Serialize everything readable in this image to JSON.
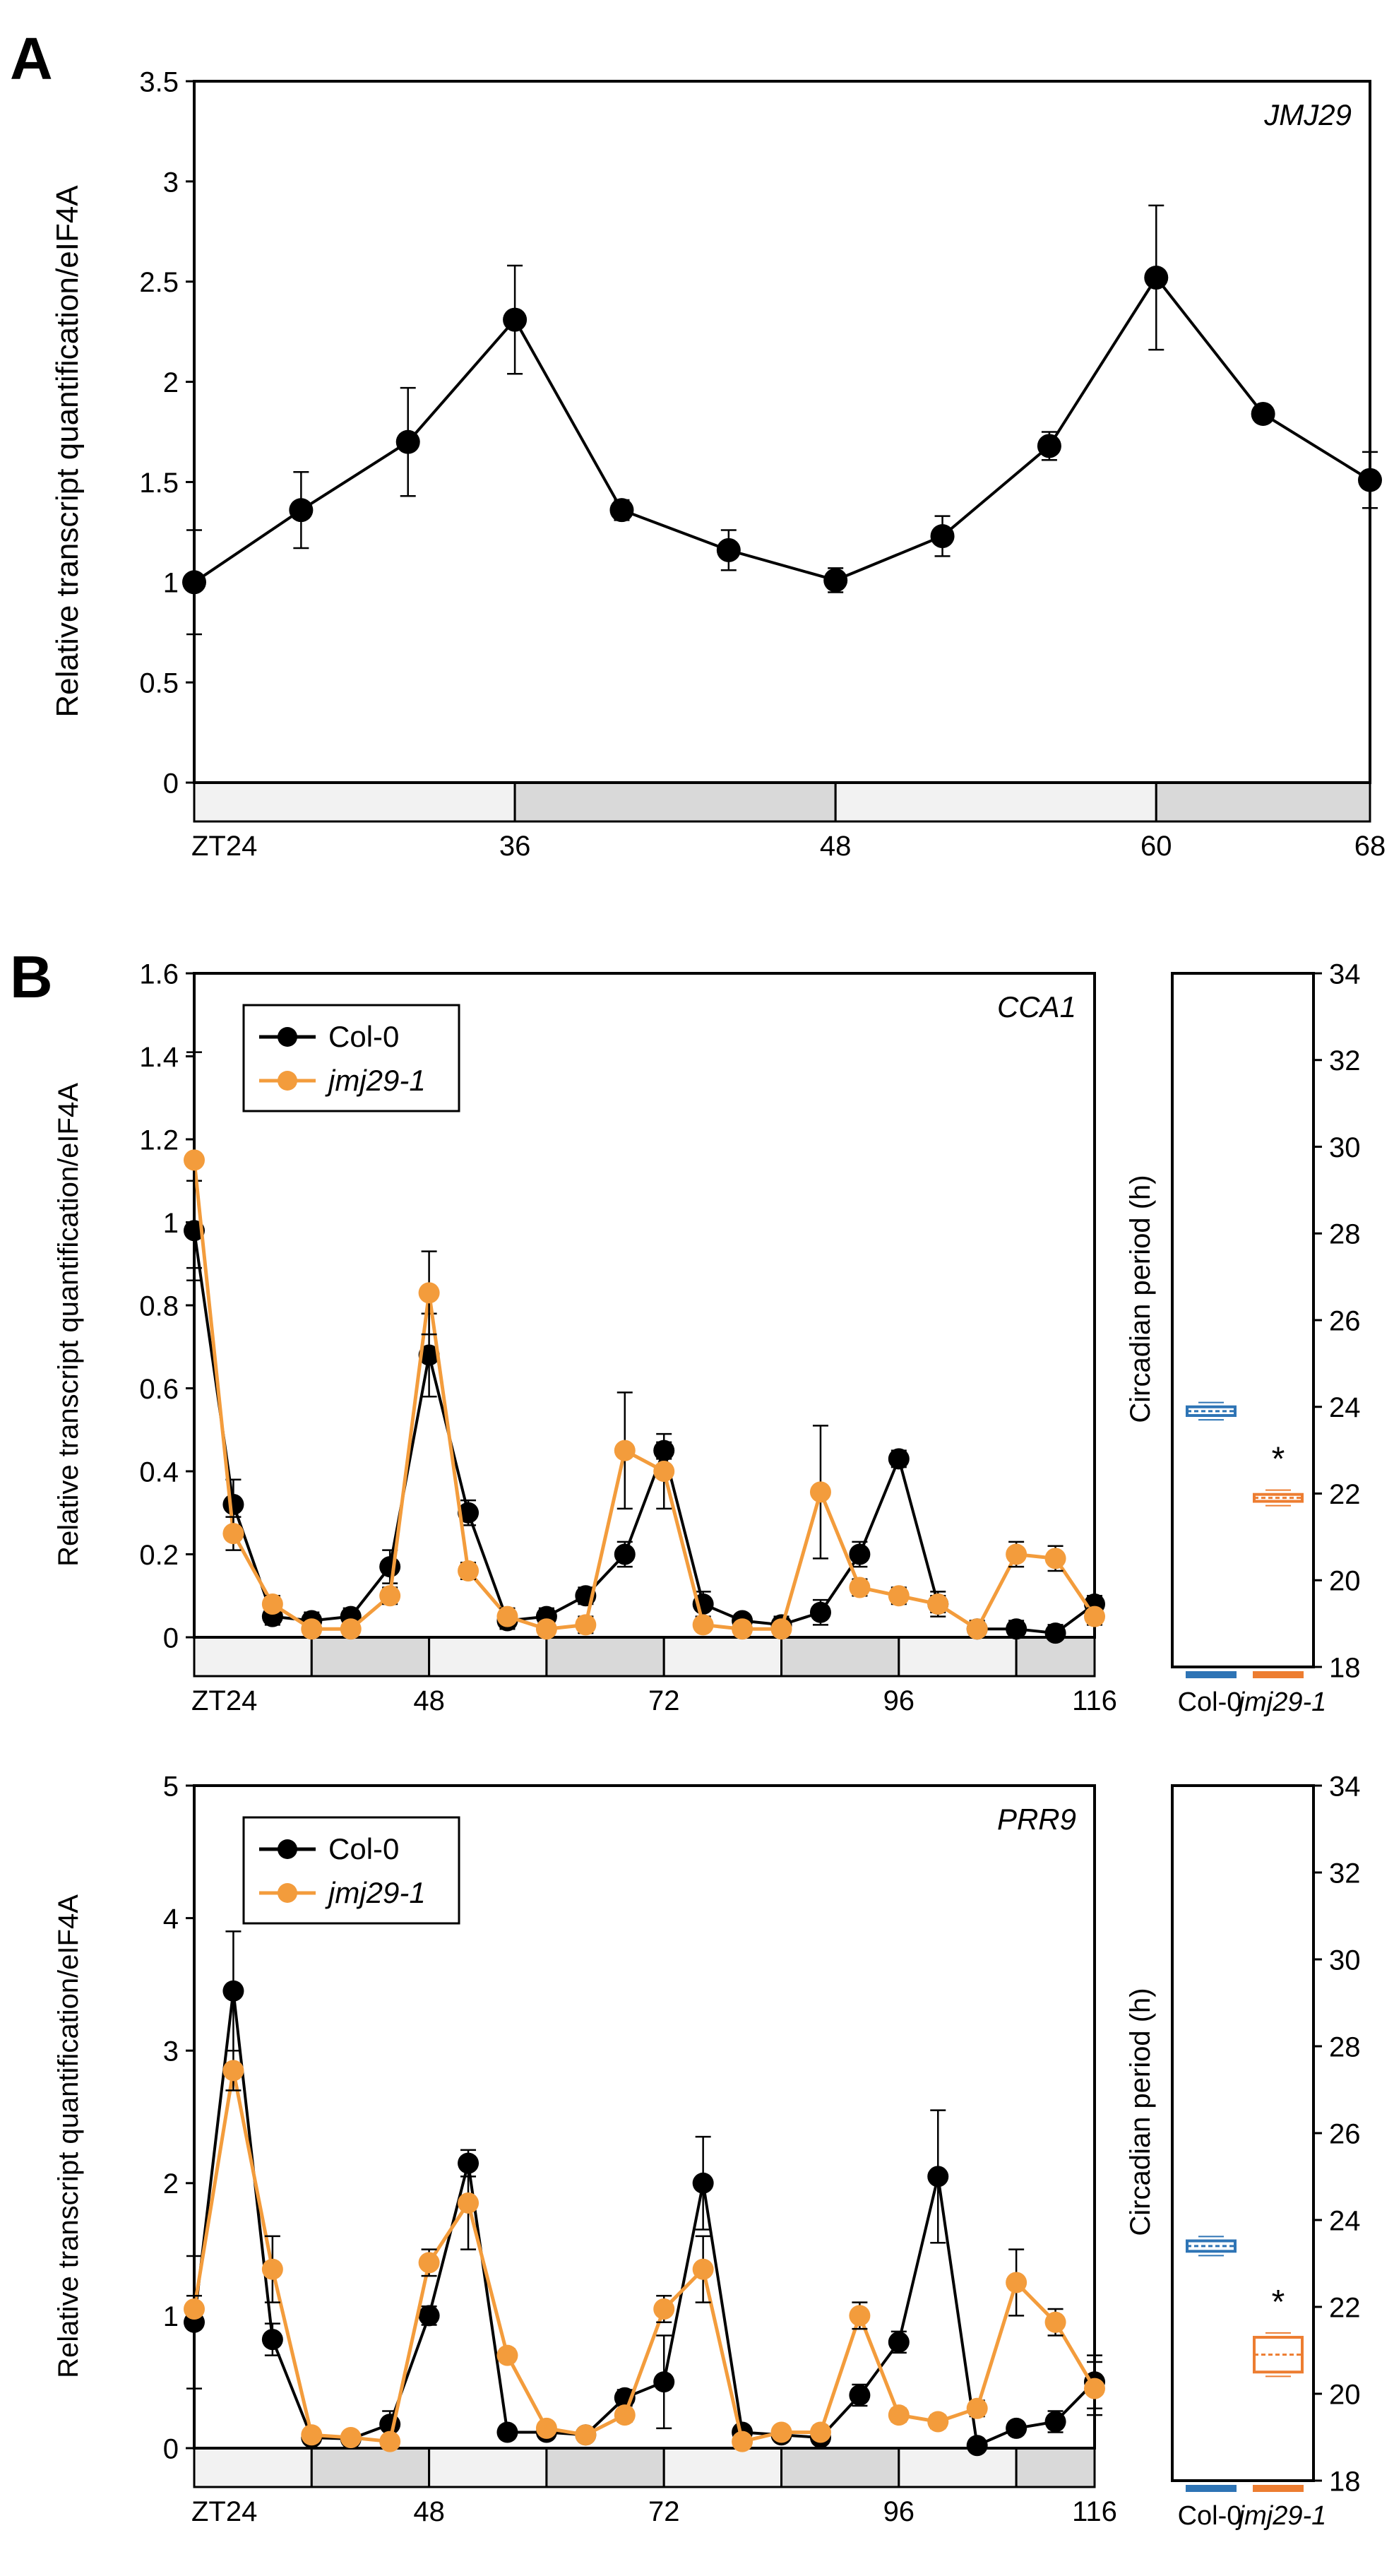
{
  "panels": {
    "A": {
      "letter": "A"
    },
    "B": {
      "letter": "B"
    }
  },
  "colors": {
    "col0": "#000000",
    "jmj29": "#F39C3C",
    "col0_box": "#2E74B5",
    "jmj29_box": "#ED7D31",
    "dark_shade": "#D9D9D9",
    "light_shade": "#F2F2F2"
  },
  "chart_data": [
    {
      "id": "A",
      "type": "line",
      "gene": "JMJ29",
      "ylabel": "Relative transcript quantification/eIF4A",
      "xlim": [
        24,
        68
      ],
      "ylim": [
        0,
        3.5
      ],
      "yticks": [
        "0",
        "0.5",
        "1",
        "1.5",
        "2",
        "2.5",
        "3",
        "3.5"
      ],
      "xticks": [
        {
          "x": 24,
          "label": "ZT24"
        },
        {
          "x": 36,
          "label": "36"
        },
        {
          "x": 48,
          "label": "48"
        },
        {
          "x": 60,
          "label": "60"
        },
        {
          "x": 68,
          "label": "68"
        }
      ],
      "light_dark": [
        {
          "from": 24,
          "to": 36,
          "phase": "light"
        },
        {
          "from": 36,
          "to": 48,
          "phase": "dark"
        },
        {
          "from": 48,
          "to": 60,
          "phase": "light"
        },
        {
          "from": 60,
          "to": 68,
          "phase": "dark"
        }
      ],
      "series": [
        {
          "key": "col0",
          "x": [
            24,
            28,
            32,
            36,
            40,
            44,
            48,
            52,
            56,
            60,
            64,
            68
          ],
          "y": [
            1.0,
            1.36,
            1.7,
            2.31,
            1.36,
            1.16,
            1.01,
            1.23,
            1.68,
            2.52,
            1.84,
            1.51
          ],
          "err": [
            0.26,
            0.19,
            0.27,
            0.27,
            0.05,
            0.1,
            0.06,
            0.1,
            0.07,
            0.36,
            0.04,
            0.14
          ]
        }
      ]
    },
    {
      "id": "B1",
      "type": "line",
      "gene": "CCA1",
      "ylabel": "Relative transcript quantification/eIF4A",
      "xlim": [
        24,
        116
      ],
      "ylim": [
        0,
        1.6
      ],
      "yticks": [
        "0",
        "0.2",
        "0.4",
        "0.6",
        "0.8",
        "1",
        "1.2",
        "1.4",
        "1.6"
      ],
      "xticks": [
        {
          "x": 24,
          "label": "ZT24"
        },
        {
          "x": 48,
          "label": "48"
        },
        {
          "x": 72,
          "label": "72"
        },
        {
          "x": 96,
          "label": "96"
        },
        {
          "x": 116,
          "label": "116"
        }
      ],
      "light_dark": [
        {
          "from": 24,
          "to": 36,
          "phase": "light"
        },
        {
          "from": 36,
          "to": 48,
          "phase": "dark"
        },
        {
          "from": 48,
          "to": 60,
          "phase": "light"
        },
        {
          "from": 60,
          "to": 72,
          "phase": "dark"
        },
        {
          "from": 72,
          "to": 84,
          "phase": "light"
        },
        {
          "from": 84,
          "to": 96,
          "phase": "dark"
        },
        {
          "from": 96,
          "to": 108,
          "phase": "light"
        },
        {
          "from": 108,
          "to": 116,
          "phase": "dark"
        }
      ],
      "legend": [
        "Col-0",
        "jmj29-1"
      ],
      "series": [
        {
          "key": "col0",
          "name": "Col-0",
          "x": [
            24,
            28,
            32,
            36,
            40,
            44,
            48,
            52,
            56,
            60,
            64,
            68,
            72,
            76,
            80,
            84,
            88,
            92,
            96,
            100,
            104,
            108,
            112,
            116
          ],
          "y": [
            0.98,
            0.32,
            0.05,
            0.04,
            0.05,
            0.17,
            0.68,
            0.3,
            0.04,
            0.05,
            0.1,
            0.2,
            0.45,
            0.08,
            0.04,
            0.03,
            0.06,
            0.2,
            0.43,
            0.08,
            0.02,
            0.02,
            0.01,
            0.08
          ],
          "err": [
            0.12,
            0.06,
            0.02,
            0.02,
            0.02,
            0.04,
            0.1,
            0.03,
            0.02,
            0.02,
            0.02,
            0.03,
            0.02,
            0.03,
            0.01,
            0.02,
            0.03,
            0.03,
            0.02,
            0.03,
            0.02,
            0.02,
            0.02,
            0.02
          ]
        },
        {
          "key": "jmj29",
          "name": "jmj29-1",
          "x": [
            24,
            28,
            32,
            36,
            40,
            44,
            48,
            52,
            56,
            60,
            64,
            68,
            72,
            76,
            80,
            84,
            88,
            92,
            96,
            100,
            104,
            108,
            112,
            116
          ],
          "y": [
            1.15,
            0.25,
            0.08,
            0.02,
            0.02,
            0.1,
            0.83,
            0.16,
            0.05,
            0.02,
            0.03,
            0.45,
            0.4,
            0.03,
            0.02,
            0.02,
            0.35,
            0.12,
            0.1,
            0.08,
            0.02,
            0.2,
            0.19,
            0.05
          ],
          "err": [
            0.26,
            0.04,
            0.02,
            0.01,
            0.01,
            0.02,
            0.1,
            0.02,
            0.02,
            0.01,
            0.02,
            0.14,
            0.09,
            0.01,
            0.01,
            0.01,
            0.16,
            0.02,
            0.02,
            0.02,
            0.01,
            0.03,
            0.03,
            0.02
          ]
        }
      ]
    },
    {
      "id": "B1_period",
      "type": "box",
      "ylabel": "Circadian period (h)",
      "ylim": [
        18,
        34
      ],
      "yticks": [
        "18",
        "20",
        "22",
        "24",
        "26",
        "28",
        "30",
        "32",
        "34"
      ],
      "categories": [
        "Col-0",
        "jmj29-1"
      ],
      "values": [
        23.9,
        21.9
      ],
      "spread": [
        0.1,
        0.08
      ],
      "annotations": [
        "*"
      ]
    },
    {
      "id": "B2",
      "type": "line",
      "gene": "PRR9",
      "ylabel": "Relative transcript quantification/eIF4A",
      "xlim": [
        24,
        116
      ],
      "ylim": [
        0,
        5
      ],
      "yticks": [
        "0",
        "1",
        "2",
        "3",
        "4",
        "5"
      ],
      "xticks": [
        {
          "x": 24,
          "label": "ZT24"
        },
        {
          "x": 48,
          "label": "48"
        },
        {
          "x": 72,
          "label": "72"
        },
        {
          "x": 96,
          "label": "96"
        },
        {
          "x": 116,
          "label": "116"
        }
      ],
      "light_dark": [
        {
          "from": 24,
          "to": 36,
          "phase": "light"
        },
        {
          "from": 36,
          "to": 48,
          "phase": "dark"
        },
        {
          "from": 48,
          "to": 60,
          "phase": "light"
        },
        {
          "from": 60,
          "to": 72,
          "phase": "dark"
        },
        {
          "from": 72,
          "to": 84,
          "phase": "light"
        },
        {
          "from": 84,
          "to": 96,
          "phase": "dark"
        },
        {
          "from": 96,
          "to": 108,
          "phase": "light"
        },
        {
          "from": 108,
          "to": 116,
          "phase": "dark"
        }
      ],
      "legend": [
        "Col-0",
        "jmj29-1"
      ],
      "series": [
        {
          "key": "col0",
          "name": "Col-0",
          "x": [
            24,
            28,
            32,
            36,
            40,
            44,
            48,
            52,
            56,
            60,
            64,
            68,
            72,
            76,
            80,
            84,
            88,
            92,
            96,
            100,
            104,
            108,
            112,
            116
          ],
          "y": [
            0.95,
            3.45,
            0.82,
            0.08,
            0.07,
            0.18,
            1.0,
            2.15,
            0.12,
            0.12,
            0.1,
            0.38,
            0.5,
            2.0,
            0.12,
            0.1,
            0.08,
            0.4,
            0.8,
            2.05,
            0.02,
            0.15,
            0.2,
            0.5
          ],
          "err": [
            0.5,
            0.45,
            0.12,
            0.03,
            0.03,
            0.1,
            0.07,
            0.1,
            0.05,
            0.03,
            0.02,
            0.06,
            0.35,
            0.35,
            0.04,
            0.02,
            0.03,
            0.08,
            0.08,
            0.5,
            0.02,
            0.05,
            0.08,
            0.2
          ]
        },
        {
          "key": "jmj29",
          "name": "jmj29-1",
          "x": [
            24,
            28,
            32,
            36,
            40,
            44,
            48,
            52,
            56,
            60,
            64,
            68,
            72,
            76,
            80,
            84,
            88,
            92,
            96,
            100,
            104,
            108,
            112,
            116
          ],
          "y": [
            1.05,
            2.85,
            1.35,
            0.1,
            0.08,
            0.05,
            1.4,
            1.85,
            0.7,
            0.15,
            0.1,
            0.25,
            1.05,
            1.35,
            0.05,
            0.12,
            0.12,
            1.0,
            0.25,
            0.2,
            0.3,
            1.25,
            0.95,
            0.45
          ],
          "err": [
            0.1,
            0.15,
            0.25,
            0.03,
            0.02,
            0.03,
            0.1,
            0.35,
            0.05,
            0.04,
            0.03,
            0.05,
            0.1,
            0.25,
            0.03,
            0.03,
            0.05,
            0.1,
            0.05,
            0.05,
            0.06,
            0.25,
            0.1,
            0.2
          ]
        }
      ]
    },
    {
      "id": "B2_period",
      "type": "box",
      "ylabel": "Circadian period (h)",
      "ylim": [
        18,
        34
      ],
      "yticks": [
        "18",
        "20",
        "22",
        "24",
        "26",
        "28",
        "30",
        "32",
        "34"
      ],
      "categories": [
        "Col-0",
        "jmj29-1"
      ],
      "values": [
        23.4,
        20.9
      ],
      "spread": [
        0.12,
        0.4
      ],
      "annotations": [
        "*"
      ]
    }
  ]
}
